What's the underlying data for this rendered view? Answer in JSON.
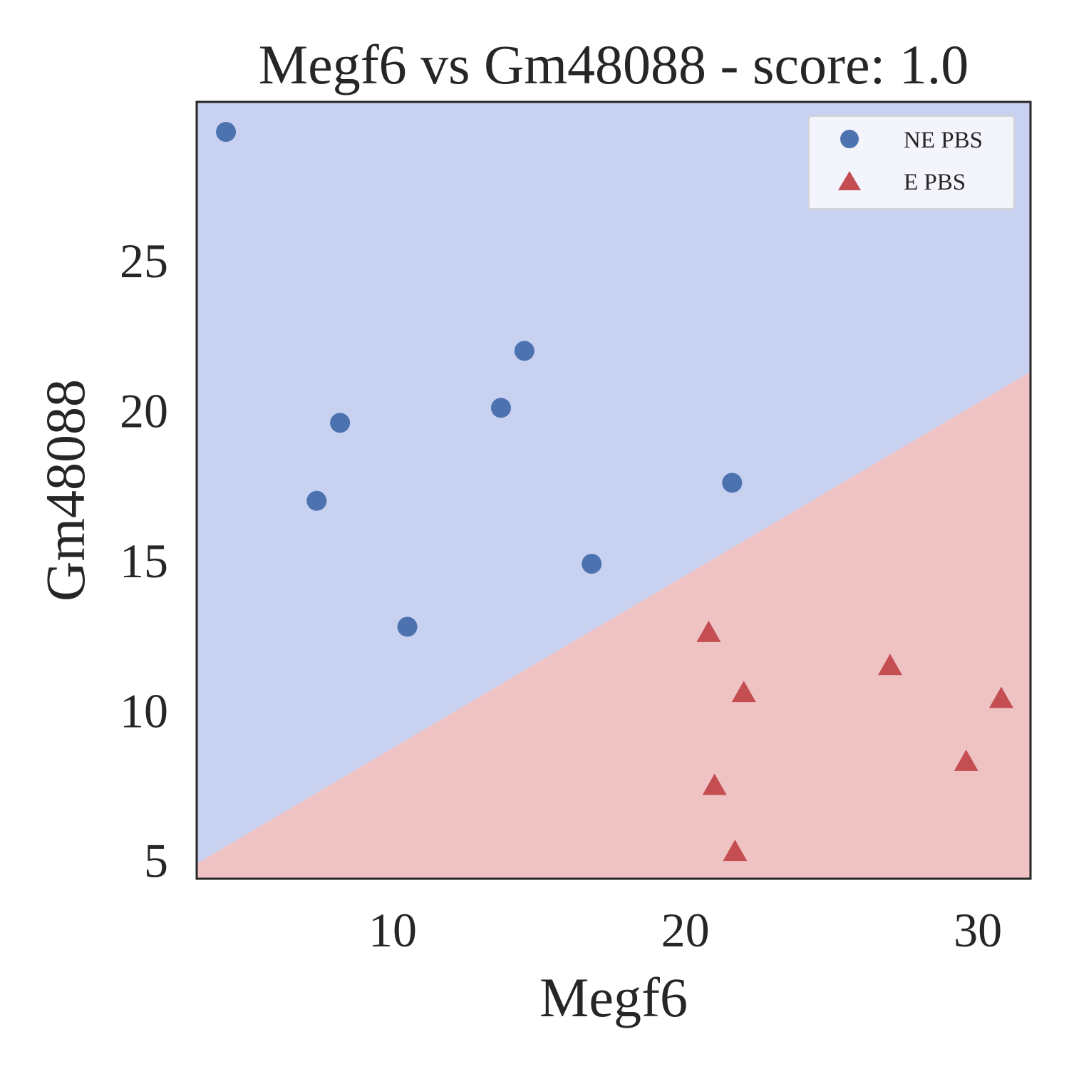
{
  "chart_data": {
    "type": "scatter",
    "title": "Megf6 vs Gm48088 - score: 1.0",
    "xlabel": "Megf6",
    "ylabel": "Gm48088",
    "xlim": [
      3.3,
      31.8
    ],
    "ylim": [
      4.4,
      30.3
    ],
    "xticks": [
      10,
      20,
      30
    ],
    "yticks": [
      5,
      10,
      15,
      20,
      25
    ],
    "grid": false,
    "legend_position": "top-right",
    "decision_boundary": {
      "y_at_xmin": 4.9,
      "y_at_xmax": 21.3,
      "upper_region_color": "#c9d1f1",
      "lower_region_color": "#efc3c3"
    },
    "series": [
      {
        "name": "NE PBS",
        "marker": "circle",
        "color": "#4c72b0",
        "points": [
          {
            "x": 4.3,
            "y": 29.3
          },
          {
            "x": 7.4,
            "y": 17.0
          },
          {
            "x": 8.2,
            "y": 19.6
          },
          {
            "x": 10.5,
            "y": 12.8
          },
          {
            "x": 13.7,
            "y": 20.1
          },
          {
            "x": 14.5,
            "y": 22.0
          },
          {
            "x": 16.8,
            "y": 14.9
          },
          {
            "x": 21.6,
            "y": 17.6
          }
        ]
      },
      {
        "name": "E PBS",
        "marker": "triangle",
        "color": "#c44e52",
        "points": [
          {
            "x": 20.8,
            "y": 12.6
          },
          {
            "x": 21.0,
            "y": 7.5
          },
          {
            "x": 21.7,
            "y": 5.3
          },
          {
            "x": 22.0,
            "y": 10.6
          },
          {
            "x": 27.0,
            "y": 11.5
          },
          {
            "x": 29.6,
            "y": 8.3
          },
          {
            "x": 30.8,
            "y": 10.4
          }
        ]
      }
    ]
  }
}
